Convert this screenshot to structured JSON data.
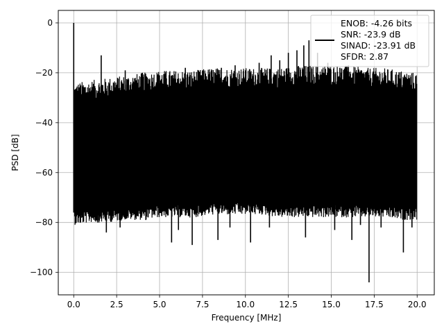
{
  "chart_data": {
    "type": "line",
    "xlabel": "Frequency [MHz]",
    "ylabel": "PSD [dB]",
    "xlim": [
      -0.9,
      21.0
    ],
    "ylim": [
      -109,
      5
    ],
    "xticks": [
      0.0,
      2.5,
      5.0,
      7.5,
      10.0,
      12.5,
      15.0,
      17.5,
      20.0
    ],
    "xtick_labels": [
      "0.0",
      "2.5",
      "5.0",
      "7.5",
      "10.0",
      "12.5",
      "15.0",
      "17.5",
      "20.0"
    ],
    "yticks": [
      0,
      -20,
      -40,
      -60,
      -80,
      -100
    ],
    "ytick_labels": [
      "0",
      "−20",
      "−40",
      "−60",
      "−80",
      "−100"
    ],
    "grid": true,
    "legend_position": "upper-right",
    "legend": [
      "ENOB: -4.26 bits",
      "SNR: -23.9 dB",
      "SINAD: -23.91 dB",
      "SFDR: 2.87"
    ],
    "series": [
      {
        "color": "#000000",
        "noise_band": {
          "x": [
            0.05,
            1.0,
            2.0,
            3.0,
            4.0,
            5.0,
            6.0,
            7.0,
            8.0,
            9.0,
            10.0,
            11.0,
            12.0,
            13.0,
            14.0,
            15.0,
            16.0,
            17.0,
            18.0,
            19.0,
            20.0
          ],
          "upper": [
            -32,
            -31,
            -30,
            -29,
            -28,
            -27,
            -27,
            -27,
            -26,
            -26,
            -26,
            -26,
            -26,
            -25,
            -25,
            -25,
            -25,
            -26,
            -26,
            -27,
            -28
          ],
          "lower": [
            -76,
            -75,
            -75,
            -74,
            -74,
            -73,
            -73,
            -73,
            -72,
            -72,
            -72,
            -72,
            -73,
            -73,
            -73,
            -73,
            -73,
            -73,
            -73,
            -74,
            -74
          ]
        },
        "peaks": [
          {
            "x": 0.0,
            "y": 0.0
          },
          {
            "x": 1.6,
            "y": -13
          },
          {
            "x": 3.0,
            "y": -19
          },
          {
            "x": 4.0,
            "y": -20
          },
          {
            "x": 5.0,
            "y": -21
          },
          {
            "x": 6.5,
            "y": -18
          },
          {
            "x": 7.5,
            "y": -19
          },
          {
            "x": 8.6,
            "y": -18
          },
          {
            "x": 9.4,
            "y": -17
          },
          {
            "x": 10.0,
            "y": -19
          },
          {
            "x": 10.8,
            "y": -16
          },
          {
            "x": 11.5,
            "y": -13
          },
          {
            "x": 12.0,
            "y": -15
          },
          {
            "x": 12.5,
            "y": -12
          },
          {
            "x": 13.0,
            "y": -11
          },
          {
            "x": 13.4,
            "y": -9
          },
          {
            "x": 13.7,
            "y": -7
          },
          {
            "x": 14.2,
            "y": -12
          },
          {
            "x": 14.8,
            "y": -16
          },
          {
            "x": 15.5,
            "y": -18
          },
          {
            "x": 16.0,
            "y": -17
          },
          {
            "x": 17.0,
            "y": -20
          },
          {
            "x": 18.5,
            "y": -21
          },
          {
            "x": 19.5,
            "y": -22
          }
        ],
        "dips": [
          {
            "x": 0.4,
            "y": -80
          },
          {
            "x": 1.4,
            "y": -80
          },
          {
            "x": 1.9,
            "y": -84
          },
          {
            "x": 2.7,
            "y": -82
          },
          {
            "x": 4.2,
            "y": -79
          },
          {
            "x": 5.7,
            "y": -88
          },
          {
            "x": 6.1,
            "y": -83
          },
          {
            "x": 6.9,
            "y": -89
          },
          {
            "x": 8.4,
            "y": -87
          },
          {
            "x": 9.1,
            "y": -82
          },
          {
            "x": 10.3,
            "y": -88
          },
          {
            "x": 11.4,
            "y": -82
          },
          {
            "x": 13.5,
            "y": -86
          },
          {
            "x": 15.2,
            "y": -83
          },
          {
            "x": 16.2,
            "y": -87
          },
          {
            "x": 16.7,
            "y": -81
          },
          {
            "x": 17.2,
            "y": -104
          },
          {
            "x": 17.9,
            "y": -82
          },
          {
            "x": 19.2,
            "y": -92
          },
          {
            "x": 19.7,
            "y": -82
          }
        ]
      }
    ]
  }
}
